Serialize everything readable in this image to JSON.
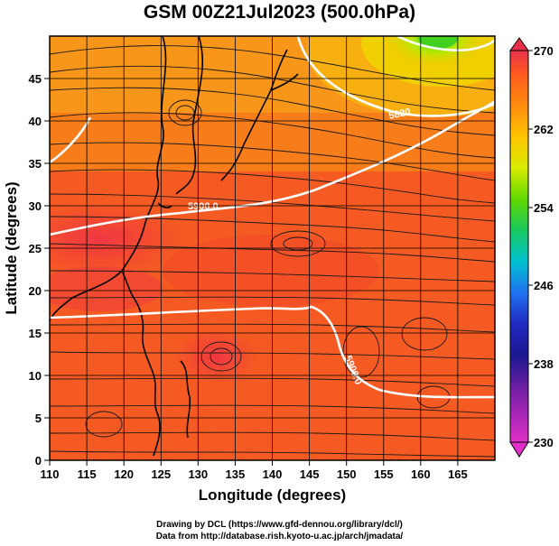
{
  "title": "GSM 00Z21Jul2023 (500.0hPa)",
  "x_axis": {
    "label": "Longitude (degrees)",
    "ticks": [
      "110",
      "115",
      "120",
      "125",
      "130",
      "135",
      "140",
      "145",
      "150",
      "155",
      "160",
      "165"
    ],
    "range": [
      110,
      170
    ]
  },
  "y_axis": {
    "label": "Latitude (degrees)",
    "ticks": [
      "0",
      "5",
      "10",
      "15",
      "20",
      "25",
      "30",
      "35",
      "40",
      "45"
    ],
    "range": [
      0,
      50
    ]
  },
  "colorbar": {
    "ticks": [
      "270",
      "262",
      "254",
      "246",
      "238",
      "230"
    ],
    "range": [
      230,
      270
    ],
    "colors_top_to_bottom": [
      "#e8304a",
      "#ff5a1e",
      "#ff8c10",
      "#ffc400",
      "#d8ec00",
      "#60d800",
      "#18c860",
      "#00c0d0",
      "#2070f0",
      "#2028c0",
      "#1c1890",
      "#8020a8",
      "#e030c8"
    ]
  },
  "contour_labels": [
    "5900.0",
    "5900.0",
    "5820"
  ],
  "credits": {
    "line1": "Drawing by DCL (https://www.gfd-dennou.org/library/dcl/)",
    "line2": "Data from http://database.rish.kyoto-u.ac.jp/arch/jmadata/"
  }
}
